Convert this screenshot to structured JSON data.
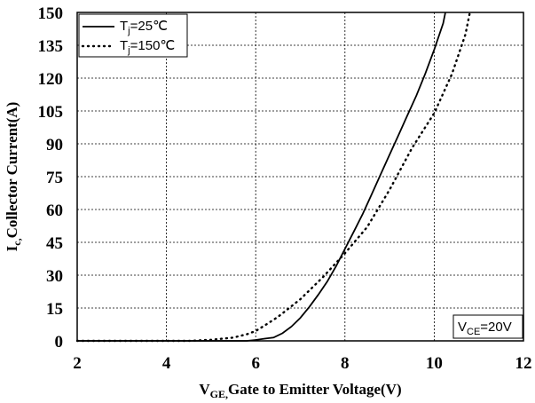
{
  "chart_data": {
    "type": "line",
    "xlabel": {
      "main": "V",
      "sub": "GE,",
      "rest": "Gate to Emitter Voltage(V)"
    },
    "ylabel": {
      "main": "I",
      "sub": "c,",
      "rest": "Collector Current(A)"
    },
    "xlim": [
      2,
      12
    ],
    "ylim": [
      0,
      150
    ],
    "xticks": [
      "2",
      "4",
      "6",
      "8",
      "10",
      "12"
    ],
    "yticks": [
      "0",
      "15",
      "30",
      "45",
      "60",
      "75",
      "90",
      "105",
      "120",
      "135",
      "150"
    ],
    "grid": true,
    "legend_position": "top-left",
    "annotation": {
      "main": "V",
      "sub": "CE",
      "rest": "=20V"
    },
    "series": [
      {
        "name": "Tj=25℃",
        "legend": {
          "main": "T",
          "sub": "j",
          "rest": "=25℃"
        },
        "style": "solid",
        "x": [
          2,
          5,
          5.8,
          6.0,
          6.2,
          6.4,
          6.6,
          6.8,
          7.0,
          7.2,
          7.4,
          7.6,
          7.8,
          8.0,
          8.2,
          8.4,
          8.6,
          8.8,
          9.0,
          9.2,
          9.4,
          9.6,
          9.8,
          10.0,
          10.2,
          10.25
        ],
        "y": [
          0,
          0,
          0,
          0.4,
          1.0,
          1.5,
          3.5,
          6.5,
          10.5,
          15.5,
          21,
          27,
          34,
          42,
          50,
          58,
          67,
          76,
          85,
          94,
          103,
          112,
          122,
          133,
          145,
          150
        ]
      },
      {
        "name": "Tj=150℃",
        "legend": {
          "main": "T",
          "sub": "j",
          "rest": "=150℃"
        },
        "style": "dotted",
        "x": [
          2,
          4.5,
          5.0,
          5.5,
          5.8,
          6.0,
          6.2,
          6.5,
          7.0,
          7.5,
          8.0,
          8.5,
          9.0,
          9.5,
          10.0,
          10.4,
          10.7,
          10.8
        ],
        "y": [
          0,
          0,
          0.5,
          1.5,
          3,
          4.5,
          7,
          11,
          19,
          29,
          40,
          52,
          69,
          88,
          104,
          122,
          140,
          150
        ]
      }
    ]
  }
}
